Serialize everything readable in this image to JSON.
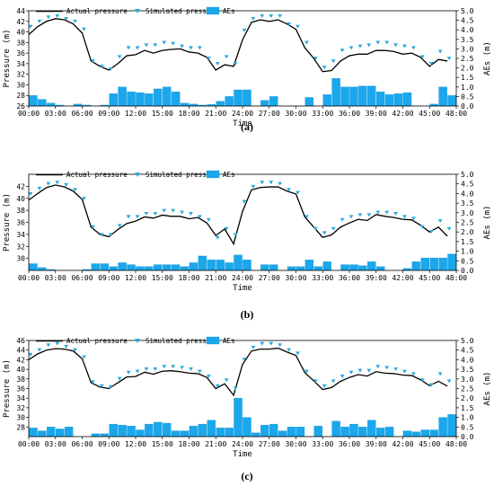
{
  "chart_data": [
    {
      "type": "bar+line",
      "caption": "(a)",
      "xlabel": "Time",
      "ylabel": "Pressure (m)",
      "y2label": "AEs (m)",
      "ylim": [
        26,
        44
      ],
      "yticks": [
        26,
        28,
        30,
        32,
        34,
        36,
        38,
        40,
        42,
        44
      ],
      "y2lim": [
        0,
        5
      ],
      "y2ticks": [
        0.0,
        0.5,
        1.0,
        1.5,
        2.0,
        2.5,
        3.0,
        3.5,
        4.0,
        4.5,
        5.0
      ],
      "xlim": [
        0,
        48
      ],
      "xticks": [
        "00:00",
        "03:00",
        "06:00",
        "09:00",
        "12:00",
        "15:00",
        "18:00",
        "21:00",
        "24:00",
        "27:00",
        "30:00",
        "33:00",
        "36:00",
        "39:00",
        "42:00",
        "45:00",
        "48:00"
      ],
      "legend": [
        "Actual pressure",
        "Simulated pressure",
        "AEs"
      ],
      "x": [
        0,
        1,
        2,
        3,
        4,
        5,
        6,
        7,
        8,
        9,
        10,
        11,
        12,
        13,
        14,
        15,
        16,
        17,
        18,
        19,
        20,
        21,
        22,
        23,
        24,
        25,
        26,
        27,
        28,
        29,
        30,
        31,
        32,
        33,
        34,
        35,
        36,
        37,
        38,
        39,
        40,
        41,
        42,
        43,
        44,
        45,
        46,
        47
      ],
      "series": [
        {
          "name": "Actual pressure",
          "values": [
            39.5,
            41.0,
            42.0,
            42.5,
            42.3,
            41.5,
            39.8,
            34.5,
            33.5,
            32.8,
            34.0,
            35.5,
            35.7,
            36.5,
            36.0,
            36.5,
            36.7,
            36.8,
            36.2,
            36.0,
            35.2,
            32.8,
            33.8,
            33.5,
            38.5,
            41.8,
            42.3,
            42.0,
            42.3,
            41.5,
            40.5,
            37.0,
            35.0,
            32.5,
            32.7,
            34.5,
            35.5,
            35.8,
            35.8,
            36.5,
            36.5,
            36.3,
            35.8,
            36.0,
            35.2,
            33.5,
            34.8,
            34.5
          ]
        },
        {
          "name": "Simulated pressure",
          "values": [
            40.5,
            41.5,
            42.3,
            42.5,
            42.0,
            41.5,
            40.0,
            34.0,
            33.0,
            32.5,
            34.8,
            36.5,
            36.5,
            37.0,
            37.0,
            37.5,
            37.3,
            36.8,
            36.5,
            36.5,
            34.5,
            33.5,
            34.8,
            33.5,
            39.8,
            42.0,
            42.5,
            42.5,
            42.5,
            41.0,
            40.5,
            37.5,
            34.5,
            32.8,
            34.0,
            36.0,
            36.5,
            36.8,
            37.0,
            37.5,
            37.5,
            37.0,
            36.8,
            36.5,
            34.8,
            33.5,
            35.8,
            34.5
          ]
        },
        {
          "name": "AEs",
          "values": [
            0.55,
            0.35,
            0.15,
            0.05,
            0.0,
            0.1,
            0.05,
            0.0,
            0.05,
            0.65,
            1.0,
            0.75,
            0.7,
            0.65,
            0.9,
            1.0,
            0.75,
            0.15,
            0.1,
            0.05,
            0.08,
            0.25,
            0.5,
            0.85,
            0.85,
            0.0,
            0.3,
            0.5,
            0.0,
            0.0,
            0.0,
            0.45,
            0.0,
            0.6,
            1.45,
            1.0,
            1.0,
            1.05,
            1.05,
            0.75,
            0.6,
            0.65,
            0.7,
            0.0,
            0.0,
            0.1,
            1.0,
            0.55
          ]
        }
      ]
    },
    {
      "type": "bar+line",
      "caption": "(b)",
      "xlabel": "Time",
      "ylabel": "Pressure (m)",
      "y2label": "AEs (m)",
      "ylim": [
        28,
        44
      ],
      "yticks": [
        30,
        32,
        34,
        36,
        38,
        40,
        42
      ],
      "y2lim": [
        0,
        5
      ],
      "y2ticks": [
        0.0,
        0.5,
        1.0,
        1.5,
        2.0,
        2.5,
        3.0,
        3.5,
        4.0,
        4.5,
        5.0
      ],
      "xlim": [
        0,
        48
      ],
      "xticks": [
        "00:00",
        "03:00",
        "06:00",
        "09:00",
        "12:00",
        "15:00",
        "18:00",
        "21:00",
        "24:00",
        "27:00",
        "30:00",
        "33:00",
        "36:00",
        "39:00",
        "42:00",
        "45:00",
        "48:00"
      ],
      "legend": [
        "Actual pressure",
        "Simulated pressure",
        "AEs"
      ],
      "x": [
        0,
        1,
        2,
        3,
        4,
        5,
        6,
        7,
        8,
        9,
        10,
        11,
        12,
        13,
        14,
        15,
        16,
        17,
        18,
        19,
        20,
        21,
        22,
        23,
        24,
        25,
        26,
        27,
        28,
        29,
        30,
        31,
        32,
        33,
        34,
        35,
        36,
        37,
        38,
        39,
        40,
        41,
        42,
        43,
        44,
        45,
        46,
        47
      ],
      "series": [
        {
          "name": "Actual pressure",
          "values": [
            39.7,
            40.8,
            41.8,
            42.2,
            41.9,
            41.2,
            39.8,
            35.2,
            34.0,
            33.6,
            34.8,
            35.8,
            36.2,
            36.9,
            36.7,
            37.2,
            37.0,
            37.0,
            36.6,
            36.8,
            35.9,
            33.8,
            34.9,
            32.4,
            37.8,
            41.4,
            41.8,
            41.9,
            41.9,
            41.2,
            40.7,
            36.9,
            35.2,
            33.5,
            33.9,
            35.2,
            35.9,
            36.5,
            36.3,
            37.3,
            37.0,
            36.8,
            36.5,
            36.4,
            35.5,
            34.4,
            35.2,
            33.7
          ]
        },
        {
          "name": "Simulated pressure",
          "values": [
            40.3,
            41.2,
            42.0,
            42.2,
            41.8,
            41.0,
            39.5,
            34.8,
            33.5,
            33.5,
            35.0,
            36.5,
            36.5,
            37.0,
            37.0,
            37.5,
            37.5,
            37.2,
            37.0,
            36.5,
            36.0,
            33.0,
            34.5,
            33.5,
            39.0,
            41.5,
            42.2,
            42.2,
            42.0,
            41.0,
            40.5,
            36.5,
            34.5,
            33.8,
            34.5,
            36.0,
            36.5,
            36.8,
            36.8,
            37.2,
            37.2,
            37.0,
            36.5,
            36.2,
            34.8,
            34.0,
            35.8,
            34.5
          ]
        },
        {
          "name": "AEs",
          "values": [
            0.35,
            0.15,
            0.05,
            0.0,
            0.0,
            0.0,
            0.05,
            0.35,
            0.35,
            0.2,
            0.4,
            0.3,
            0.2,
            0.2,
            0.3,
            0.3,
            0.3,
            0.2,
            0.4,
            0.75,
            0.55,
            0.55,
            0.4,
            0.8,
            0.55,
            0.0,
            0.3,
            0.3,
            0.0,
            0.2,
            0.2,
            0.55,
            0.2,
            0.45,
            0.0,
            0.3,
            0.3,
            0.25,
            0.45,
            0.2,
            0.0,
            0.0,
            0.1,
            0.45,
            0.65,
            0.65,
            0.65,
            0.85
          ]
        }
      ]
    },
    {
      "type": "bar+line",
      "caption": "(c)",
      "xlabel": "Time",
      "ylabel": "Pressure (m)",
      "y2label": "AEs (m)",
      "ylim": [
        26,
        46
      ],
      "yticks": [
        28,
        30,
        32,
        34,
        36,
        38,
        40,
        42,
        44,
        46
      ],
      "y2lim": [
        0,
        5
      ],
      "y2ticks": [
        0.0,
        0.5,
        1.0,
        1.5,
        2.0,
        2.5,
        3.0,
        3.5,
        4.0,
        4.5,
        5.0
      ],
      "xlim": [
        0,
        48
      ],
      "xticks": [
        "00:00",
        "03:00",
        "06:00",
        "09:00",
        "12:00",
        "15:00",
        "18:00",
        "21:00",
        "24:00",
        "27:00",
        "30:00",
        "33:00",
        "36:00",
        "39:00",
        "42:00",
        "45:00",
        "48:00"
      ],
      "legend": [
        "Actual pressure",
        "Simulated pressure",
        "AEs"
      ],
      "x": [
        0,
        1,
        2,
        3,
        4,
        5,
        6,
        7,
        8,
        9,
        10,
        11,
        12,
        13,
        14,
        15,
        16,
        17,
        18,
        19,
        20,
        21,
        22,
        23,
        24,
        25,
        26,
        27,
        28,
        29,
        30,
        31,
        32,
        33,
        34,
        35,
        36,
        37,
        38,
        39,
        40,
        41,
        42,
        43,
        44,
        45,
        46,
        47
      ],
      "series": [
        {
          "name": "Actual pressure",
          "values": [
            42.0,
            43.2,
            44.0,
            44.3,
            44.2,
            43.8,
            42.2,
            37.2,
            36.3,
            36.0,
            37.2,
            38.4,
            38.5,
            39.4,
            39.0,
            39.6,
            39.7,
            39.5,
            39.2,
            39.1,
            38.3,
            36.0,
            37.0,
            34.6,
            41.0,
            43.8,
            44.2,
            44.2,
            44.4,
            43.6,
            42.9,
            39.3,
            37.6,
            35.8,
            36.2,
            37.5,
            38.3,
            38.9,
            38.6,
            39.5,
            39.2,
            39.1,
            38.8,
            38.7,
            37.8,
            36.6,
            37.5,
            36.5
          ]
        },
        {
          "name": "Simulated pressure",
          "values": [
            42.5,
            43.5,
            44.5,
            44.8,
            44.2,
            43.5,
            42.0,
            36.8,
            36.0,
            35.8,
            37.5,
            38.8,
            39.0,
            39.5,
            39.5,
            40.0,
            40.0,
            39.8,
            39.5,
            39.0,
            38.0,
            36.0,
            37.2,
            35.5,
            41.5,
            44.0,
            44.8,
            44.8,
            44.5,
            43.5,
            42.8,
            39.0,
            37.0,
            36.0,
            37.0,
            38.0,
            38.8,
            39.2,
            39.2,
            40.0,
            39.8,
            39.5,
            39.0,
            38.5,
            37.2,
            36.2,
            38.5,
            37.0
          ]
        },
        {
          "name": "AEs",
          "values": [
            0.45,
            0.3,
            0.5,
            0.4,
            0.5,
            0.0,
            0.0,
            0.15,
            0.15,
            0.65,
            0.6,
            0.55,
            0.35,
            0.65,
            0.75,
            0.7,
            0.3,
            0.3,
            0.55,
            0.65,
            0.85,
            0.45,
            0.45,
            2.0,
            1.0,
            0.2,
            0.6,
            0.65,
            0.3,
            0.5,
            0.5,
            0.0,
            0.55,
            0.0,
            0.8,
            0.5,
            0.65,
            0.5,
            0.85,
            0.45,
            0.5,
            0.0,
            0.3,
            0.25,
            0.35,
            0.35,
            1.0,
            1.15
          ]
        }
      ]
    }
  ]
}
